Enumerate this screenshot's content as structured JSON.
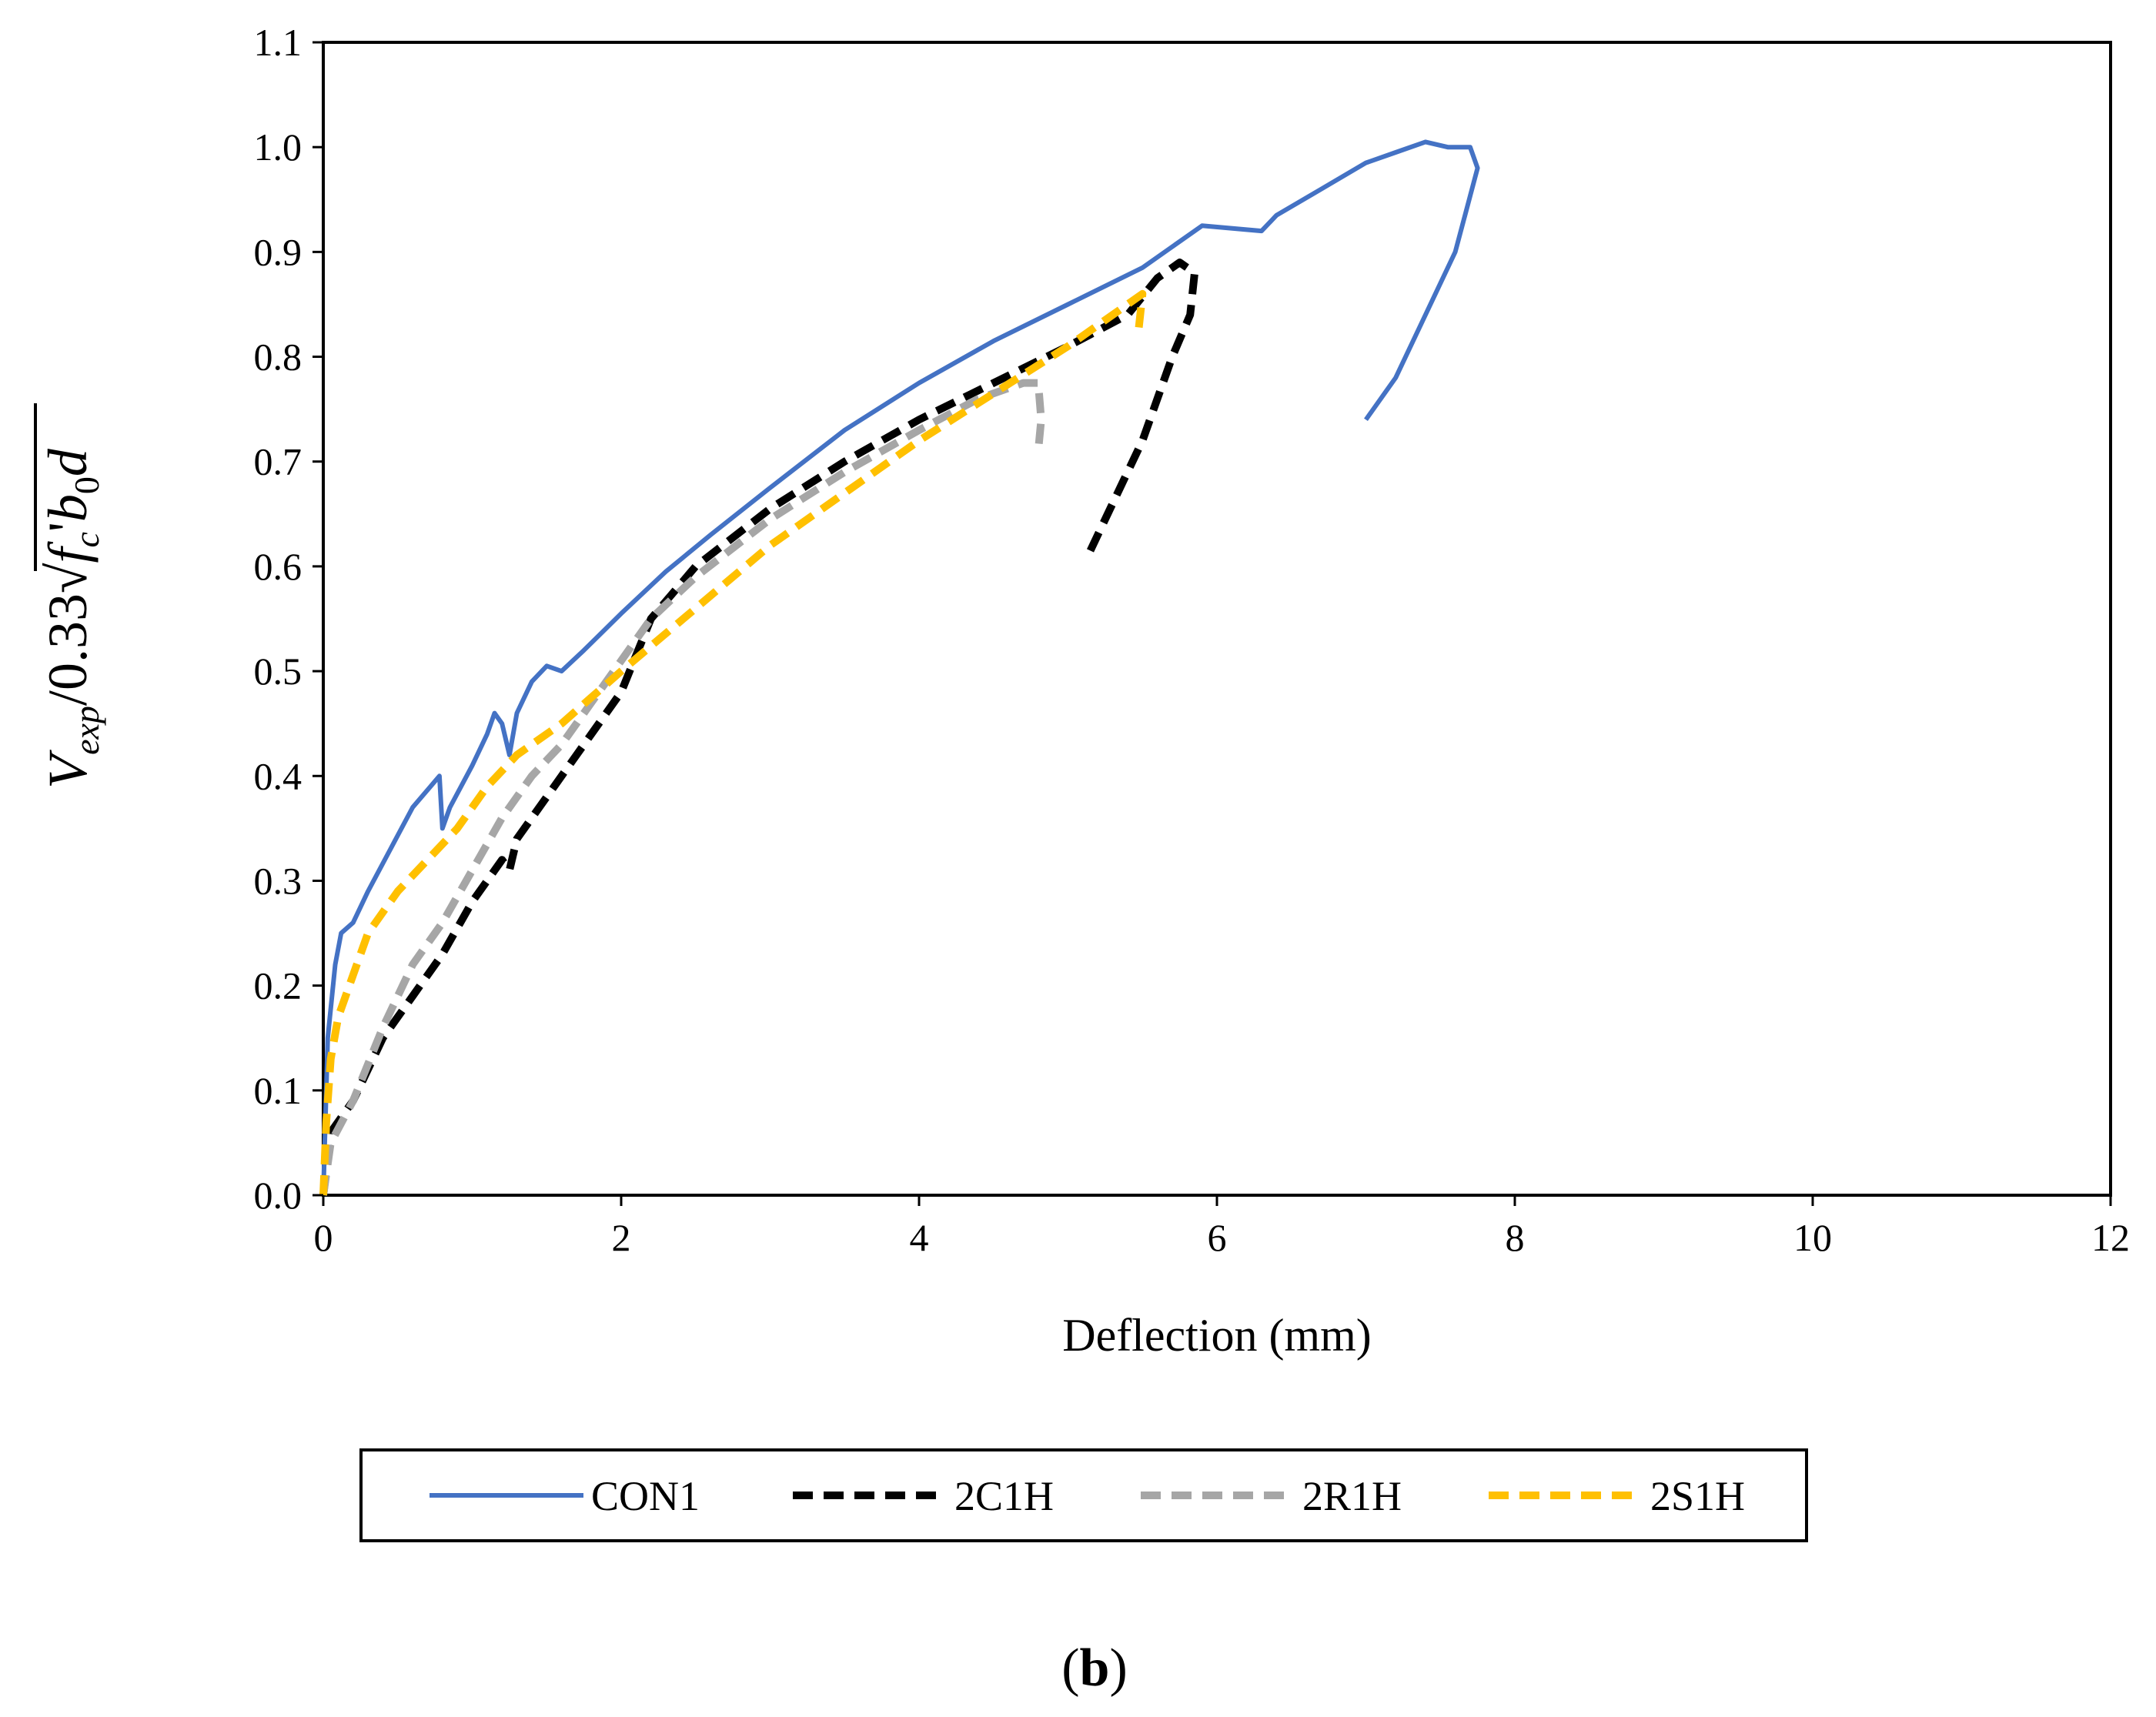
{
  "chart_data": {
    "type": "line",
    "title": "",
    "xlabel": "Deflection (mm)",
    "ylabel": {
      "prefix_V": "V",
      "prefix_sub": "exp",
      "divider": "/0.33",
      "f": "f",
      "f_sub": "c",
      "prime": "'",
      "b": "b",
      "b_sub": "0",
      "d": "d"
    },
    "xlim": [
      0,
      12
    ],
    "ylim": [
      0.0,
      1.1
    ],
    "x_ticks": [
      "0",
      "2",
      "4",
      "6",
      "8",
      "10",
      "12"
    ],
    "y_ticks": [
      "0.0",
      "0.1",
      "0.2",
      "0.3",
      "0.4",
      "0.5",
      "0.6",
      "0.7",
      "0.8",
      "0.9",
      "1.0",
      "1.1"
    ],
    "grid": false,
    "legend_position": "bottom",
    "panel_label": "b",
    "series": [
      {
        "name": "CON1",
        "color": "#4472C4",
        "dash": "solid",
        "points": [
          [
            0,
            0.0
          ],
          [
            0.03,
            0.15
          ],
          [
            0.08,
            0.22
          ],
          [
            0.12,
            0.25
          ],
          [
            0.2,
            0.26
          ],
          [
            0.3,
            0.29
          ],
          [
            0.45,
            0.33
          ],
          [
            0.6,
            0.37
          ],
          [
            0.72,
            0.39
          ],
          [
            0.78,
            0.4
          ],
          [
            0.8,
            0.35
          ],
          [
            0.85,
            0.37
          ],
          [
            1.0,
            0.41
          ],
          [
            1.1,
            0.44
          ],
          [
            1.15,
            0.46
          ],
          [
            1.2,
            0.45
          ],
          [
            1.25,
            0.42
          ],
          [
            1.3,
            0.46
          ],
          [
            1.4,
            0.49
          ],
          [
            1.5,
            0.505
          ],
          [
            1.6,
            0.5
          ],
          [
            1.75,
            0.52
          ],
          [
            2.0,
            0.555
          ],
          [
            2.3,
            0.595
          ],
          [
            2.6,
            0.63
          ],
          [
            3.0,
            0.675
          ],
          [
            3.5,
            0.73
          ],
          [
            4.0,
            0.775
          ],
          [
            4.5,
            0.815
          ],
          [
            5.0,
            0.85
          ],
          [
            5.5,
            0.885
          ],
          [
            5.9,
            0.925
          ],
          [
            6.3,
            0.92
          ],
          [
            6.4,
            0.935
          ],
          [
            6.7,
            0.96
          ],
          [
            7.0,
            0.985
          ],
          [
            7.2,
            0.995
          ],
          [
            7.4,
            1.005
          ],
          [
            7.55,
            1.0
          ],
          [
            7.7,
            1.0
          ],
          [
            7.75,
            0.98
          ],
          [
            7.6,
            0.9
          ],
          [
            7.4,
            0.84
          ],
          [
            7.2,
            0.78
          ],
          [
            7.0,
            0.74
          ]
        ]
      },
      {
        "name": "2C1H",
        "color": "#000000",
        "dash": "dashed",
        "points": [
          [
            0,
            0.0
          ],
          [
            0.05,
            0.06
          ],
          [
            0.2,
            0.09
          ],
          [
            0.4,
            0.15
          ],
          [
            0.6,
            0.19
          ],
          [
            0.8,
            0.23
          ],
          [
            1.0,
            0.28
          ],
          [
            1.2,
            0.32
          ],
          [
            1.25,
            0.31
          ],
          [
            1.3,
            0.34
          ],
          [
            1.5,
            0.38
          ],
          [
            1.7,
            0.42
          ],
          [
            2.0,
            0.48
          ],
          [
            2.2,
            0.55
          ],
          [
            2.5,
            0.6
          ],
          [
            3.0,
            0.655
          ],
          [
            3.5,
            0.7
          ],
          [
            4.0,
            0.74
          ],
          [
            4.5,
            0.775
          ],
          [
            5.0,
            0.81
          ],
          [
            5.4,
            0.84
          ],
          [
            5.6,
            0.875
          ],
          [
            5.75,
            0.89
          ],
          [
            5.85,
            0.88
          ],
          [
            5.82,
            0.84
          ],
          [
            5.7,
            0.8
          ],
          [
            5.5,
            0.72
          ],
          [
            5.3,
            0.66
          ],
          [
            5.15,
            0.615
          ]
        ]
      },
      {
        "name": "2R1H",
        "color": "#A6A6A6",
        "dash": "dashed",
        "points": [
          [
            0,
            0.0
          ],
          [
            0.05,
            0.05
          ],
          [
            0.2,
            0.09
          ],
          [
            0.4,
            0.16
          ],
          [
            0.6,
            0.22
          ],
          [
            0.8,
            0.26
          ],
          [
            1.0,
            0.31
          ],
          [
            1.2,
            0.36
          ],
          [
            1.4,
            0.4
          ],
          [
            1.6,
            0.43
          ],
          [
            1.8,
            0.47
          ],
          [
            2.0,
            0.51
          ],
          [
            2.2,
            0.55
          ],
          [
            2.5,
            0.59
          ],
          [
            3.0,
            0.645
          ],
          [
            3.5,
            0.69
          ],
          [
            4.0,
            0.73
          ],
          [
            4.4,
            0.76
          ],
          [
            4.7,
            0.775
          ],
          [
            4.8,
            0.775
          ],
          [
            4.82,
            0.74
          ],
          [
            4.8,
            0.71
          ]
        ]
      },
      {
        "name": "2S1H",
        "color": "#FFC000",
        "dash": "dashed",
        "points": [
          [
            0,
            0.0
          ],
          [
            0.02,
            0.07
          ],
          [
            0.05,
            0.13
          ],
          [
            0.1,
            0.17
          ],
          [
            0.2,
            0.21
          ],
          [
            0.3,
            0.25
          ],
          [
            0.5,
            0.29
          ],
          [
            0.7,
            0.32
          ],
          [
            0.9,
            0.35
          ],
          [
            1.1,
            0.39
          ],
          [
            1.3,
            0.42
          ],
          [
            1.6,
            0.45
          ],
          [
            2.0,
            0.5
          ],
          [
            2.5,
            0.56
          ],
          [
            3.0,
            0.62
          ],
          [
            3.5,
            0.67
          ],
          [
            4.0,
            0.72
          ],
          [
            4.5,
            0.765
          ],
          [
            5.0,
            0.81
          ],
          [
            5.3,
            0.84
          ],
          [
            5.5,
            0.86
          ],
          [
            5.47,
            0.82
          ]
        ]
      }
    ]
  }
}
